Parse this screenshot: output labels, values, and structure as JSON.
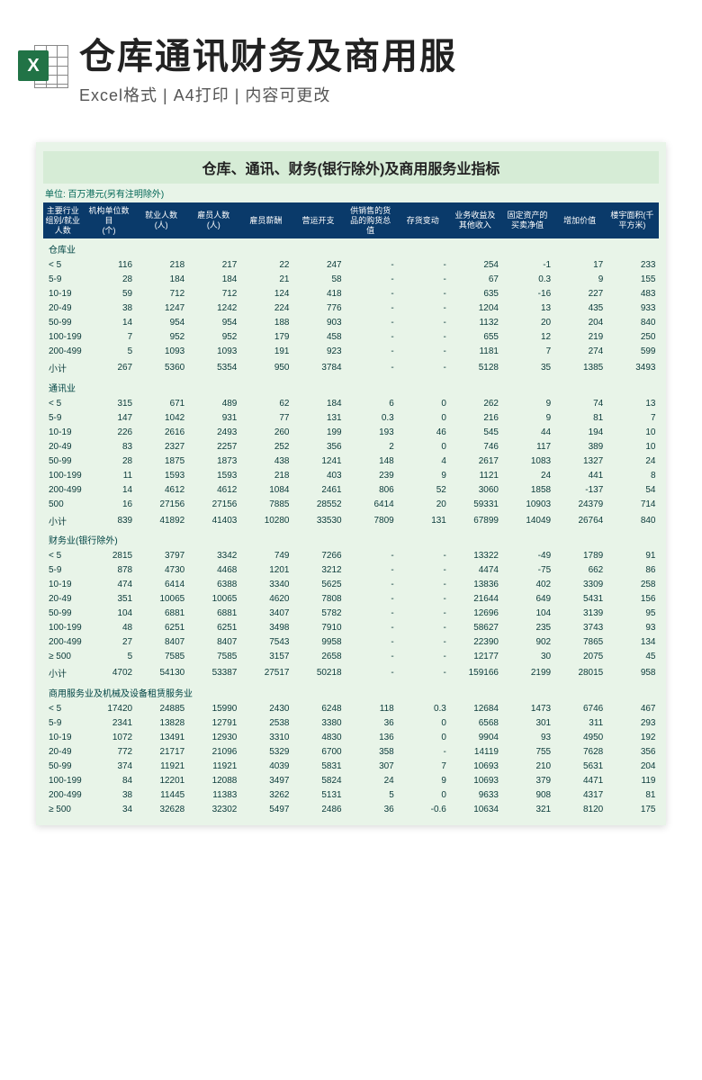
{
  "header": {
    "icon_letter": "X",
    "title": "仓库通讯财务及商用服",
    "subtitle": "Excel格式 | A4打印 | 内容可更改"
  },
  "sheet": {
    "title": "仓库、通讯、财务(银行除外)及商用服务业指标",
    "unit_note": "单位: 百万港元(另有注明除外)",
    "columns": [
      "主要行业组别/就业人数",
      "机构单位数目\n(个)",
      "就业人数\n(人)",
      "雇员人数\n(人)",
      "雇员薪酬",
      "营运开支",
      "供销售的货品的购货总值",
      "存货变动",
      "业务收益及其他收入",
      "固定资产的买卖净值",
      "增加价值",
      "楼宇面积(千平方米)"
    ],
    "colors": {
      "header_bg": "#0a3a6a",
      "header_text": "#ffffff",
      "body_bg": "#e8f4e8",
      "title_bg": "#d6ecd6",
      "text": "#0a3a3a"
    },
    "sections": [
      {
        "name": "仓库业",
        "rows": [
          [
            "< 5",
            "116",
            "218",
            "217",
            "22",
            "247",
            "-",
            "-",
            "254",
            "-1",
            "17",
            "233"
          ],
          [
            "5-9",
            "28",
            "184",
            "184",
            "21",
            "58",
            "-",
            "-",
            "67",
            "0.3",
            "9",
            "155"
          ],
          [
            "10-19",
            "59",
            "712",
            "712",
            "124",
            "418",
            "-",
            "-",
            "635",
            "-16",
            "227",
            "483"
          ],
          [
            "20-49",
            "38",
            "1247",
            "1242",
            "224",
            "776",
            "-",
            "-",
            "1204",
            "13",
            "435",
            "933"
          ],
          [
            "50-99",
            "14",
            "954",
            "954",
            "188",
            "903",
            "-",
            "-",
            "1132",
            "20",
            "204",
            "840"
          ],
          [
            "100-199",
            "7",
            "952",
            "952",
            "179",
            "458",
            "-",
            "-",
            "655",
            "12",
            "219",
            "250"
          ],
          [
            "200-499",
            "5",
            "1093",
            "1093",
            "191",
            "923",
            "-",
            "-",
            "1181",
            "7",
            "274",
            "599"
          ],
          [
            "小计",
            "267",
            "5360",
            "5354",
            "950",
            "3784",
            "-",
            "-",
            "5128",
            "35",
            "1385",
            "3493"
          ]
        ]
      },
      {
        "name": "通讯业",
        "rows": [
          [
            "< 5",
            "315",
            "671",
            "489",
            "62",
            "184",
            "6",
            "0",
            "262",
            "9",
            "74",
            "13"
          ],
          [
            "5-9",
            "147",
            "1042",
            "931",
            "77",
            "131",
            "0.3",
            "0",
            "216",
            "9",
            "81",
            "7"
          ],
          [
            "10-19",
            "226",
            "2616",
            "2493",
            "260",
            "199",
            "193",
            "46",
            "545",
            "44",
            "194",
            "10"
          ],
          [
            "20-49",
            "83",
            "2327",
            "2257",
            "252",
            "356",
            "2",
            "0",
            "746",
            "117",
            "389",
            "10"
          ],
          [
            "50-99",
            "28",
            "1875",
            "1873",
            "438",
            "1241",
            "148",
            "4",
            "2617",
            "1083",
            "1327",
            "24"
          ],
          [
            "100-199",
            "11",
            "1593",
            "1593",
            "218",
            "403",
            "239",
            "9",
            "1121",
            "24",
            "441",
            "8"
          ],
          [
            "200-499",
            "14",
            "4612",
            "4612",
            "1084",
            "2461",
            "806",
            "52",
            "3060",
            "1858",
            "-137",
            "54"
          ],
          [
            "500",
            "16",
            "27156",
            "27156",
            "7885",
            "28552",
            "6414",
            "20",
            "59331",
            "10903",
            "24379",
            "714"
          ],
          [
            "小计",
            "839",
            "41892",
            "41403",
            "10280",
            "33530",
            "7809",
            "131",
            "67899",
            "14049",
            "26764",
            "840"
          ]
        ]
      },
      {
        "name": "财务业(银行除外)",
        "rows": [
          [
            "< 5",
            "2815",
            "3797",
            "3342",
            "749",
            "7266",
            "-",
            "-",
            "13322",
            "-49",
            "1789",
            "91"
          ],
          [
            "5-9",
            "878",
            "4730",
            "4468",
            "1201",
            "3212",
            "-",
            "-",
            "4474",
            "-75",
            "662",
            "86"
          ],
          [
            "10-19",
            "474",
            "6414",
            "6388",
            "3340",
            "5625",
            "-",
            "-",
            "13836",
            "402",
            "3309",
            "258"
          ],
          [
            "20-49",
            "351",
            "10065",
            "10065",
            "4620",
            "7808",
            "-",
            "-",
            "21644",
            "649",
            "5431",
            "156"
          ],
          [
            "50-99",
            "104",
            "6881",
            "6881",
            "3407",
            "5782",
            "-",
            "-",
            "12696",
            "104",
            "3139",
            "95"
          ],
          [
            "100-199",
            "48",
            "6251",
            "6251",
            "3498",
            "7910",
            "-",
            "-",
            "58627",
            "235",
            "3743",
            "93"
          ],
          [
            "200-499",
            "27",
            "8407",
            "8407",
            "7543",
            "9958",
            "-",
            "-",
            "22390",
            "902",
            "7865",
            "134"
          ],
          [
            "≥ 500",
            "5",
            "7585",
            "7585",
            "3157",
            "2658",
            "-",
            "-",
            "12177",
            "30",
            "2075",
            "45"
          ],
          [
            "小计",
            "4702",
            "54130",
            "53387",
            "27517",
            "50218",
            "-",
            "-",
            "159166",
            "2199",
            "28015",
            "958"
          ]
        ]
      },
      {
        "name": "商用服务业及机械及设备租赁服务业",
        "rows": [
          [
            "< 5",
            "17420",
            "24885",
            "15990",
            "2430",
            "6248",
            "118",
            "0.3",
            "12684",
            "1473",
            "6746",
            "467"
          ],
          [
            "5-9",
            "2341",
            "13828",
            "12791",
            "2538",
            "3380",
            "36",
            "0",
            "6568",
            "301",
            "311",
            "293"
          ],
          [
            "10-19",
            "1072",
            "13491",
            "12930",
            "3310",
            "4830",
            "136",
            "0",
            "9904",
            "93",
            "4950",
            "192"
          ],
          [
            "20-49",
            "772",
            "21717",
            "21096",
            "5329",
            "6700",
            "358",
            "-",
            "14119",
            "755",
            "7628",
            "356"
          ],
          [
            "50-99",
            "374",
            "11921",
            "11921",
            "4039",
            "5831",
            "307",
            "7",
            "10693",
            "210",
            "5631",
            "204"
          ],
          [
            "100-199",
            "84",
            "12201",
            "12088",
            "3497",
            "5824",
            "24",
            "9",
            "10693",
            "379",
            "4471",
            "119"
          ],
          [
            "200-499",
            "38",
            "11445",
            "11383",
            "3262",
            "5131",
            "5",
            "0",
            "9633",
            "908",
            "4317",
            "81"
          ],
          [
            "≥ 500",
            "34",
            "32628",
            "32302",
            "5497",
            "2486",
            "36",
            "-0.6",
            "10634",
            "321",
            "8120",
            "175"
          ]
        ]
      }
    ]
  }
}
